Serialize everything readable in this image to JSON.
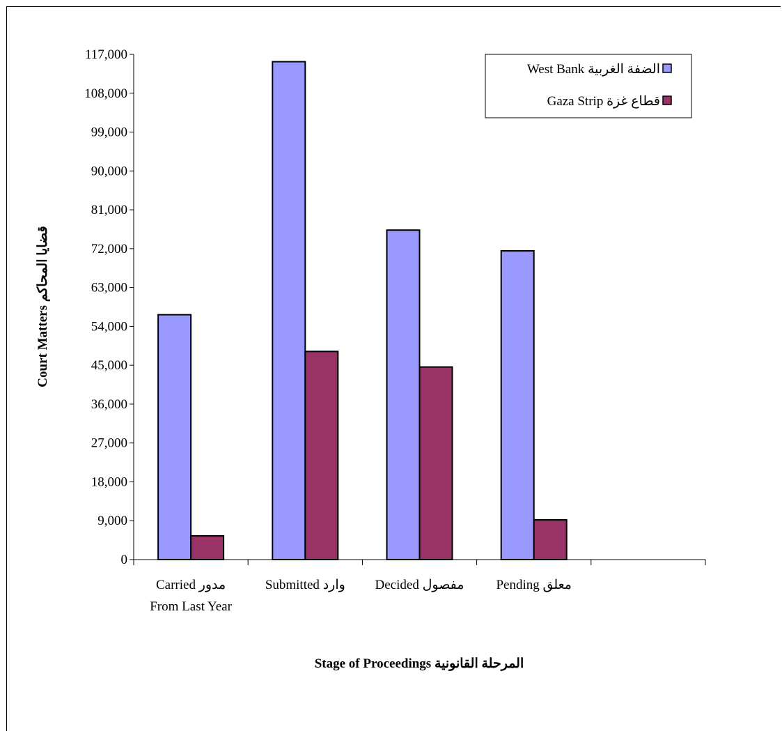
{
  "chart_data": {
    "type": "bar",
    "xlabel": "Stage of Proceedings المرحلة القانونية",
    "ylabel": "Court Matters قضايا المحاكم",
    "ylim": [
      0,
      117000
    ],
    "yticks": [
      0,
      9000,
      18000,
      27000,
      36000,
      45000,
      54000,
      63000,
      72000,
      81000,
      90000,
      99000,
      108000,
      117000
    ],
    "ytick_labels": [
      "0",
      "9,000",
      "18,000",
      "27,000",
      "36,000",
      "45,000",
      "54,000",
      "63,000",
      "72,000",
      "81,000",
      "90,000",
      "99,000",
      "108,000",
      "117,000"
    ],
    "grid": false,
    "legend_position": "top-right",
    "categories": [
      [
        "Carried مدور",
        "From Last Year"
      ],
      [
        "Submitted وارد"
      ],
      [
        "Decided مفصول"
      ],
      [
        "Pending معلق"
      ],
      [
        ""
      ]
    ],
    "series": [
      {
        "name": "West Bank الضفة الغربية",
        "color": "#9999ff",
        "values": [
          56700,
          115300,
          76300,
          71500,
          null
        ]
      },
      {
        "name": "Gaza Strip قطاع غزة",
        "color": "#993366",
        "values": [
          5500,
          48200,
          44600,
          9200,
          null
        ]
      }
    ]
  }
}
